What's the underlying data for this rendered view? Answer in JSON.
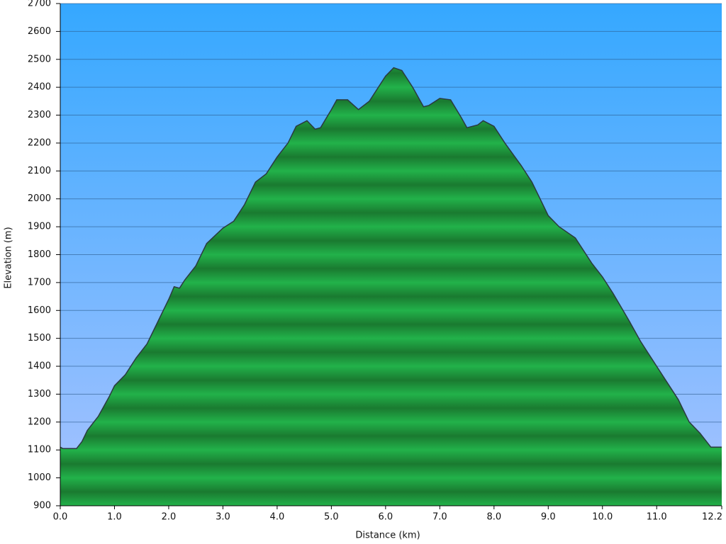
{
  "chart_data": {
    "type": "area",
    "xlabel": "Distance (km)",
    "ylabel": "Elevation (m)",
    "xlim": [
      0,
      12.2
    ],
    "ylim": [
      900,
      2700
    ],
    "xticks": [
      {
        "value": 0,
        "label": "0.0"
      },
      {
        "value": 1,
        "label": "1.0"
      },
      {
        "value": 2,
        "label": "2.0"
      },
      {
        "value": 3,
        "label": "3.0"
      },
      {
        "value": 4,
        "label": "4.0"
      },
      {
        "value": 5,
        "label": "5.0"
      },
      {
        "value": 6,
        "label": "6.0"
      },
      {
        "value": 7,
        "label": "7.0"
      },
      {
        "value": 8,
        "label": "8.0"
      },
      {
        "value": 9,
        "label": "9.0"
      },
      {
        "value": 10,
        "label": "10.0"
      },
      {
        "value": 11,
        "label": "11.0"
      },
      {
        "value": 12.2,
        "label": "12.2"
      }
    ],
    "yticks": [
      900,
      1000,
      1100,
      1200,
      1300,
      1400,
      1500,
      1600,
      1700,
      1800,
      1900,
      2000,
      2100,
      2200,
      2300,
      2400,
      2500,
      2600,
      2700
    ],
    "grid": true,
    "color": "#1f9e3c",
    "x": [
      0,
      0.05,
      0.3,
      0.4,
      0.5,
      0.7,
      0.9,
      1.0,
      1.2,
      1.4,
      1.6,
      1.8,
      2.0,
      2.1,
      2.2,
      2.3,
      2.5,
      2.7,
      3.0,
      3.2,
      3.4,
      3.6,
      3.8,
      4.0,
      4.2,
      4.35,
      4.55,
      4.7,
      4.8,
      5.0,
      5.1,
      5.3,
      5.5,
      5.7,
      6.0,
      6.15,
      6.3,
      6.5,
      6.7,
      6.8,
      7.0,
      7.2,
      7.4,
      7.5,
      7.7,
      7.8,
      8.0,
      8.2,
      8.5,
      8.7,
      9.0,
      9.2,
      9.5,
      9.8,
      10.0,
      10.2,
      10.5,
      10.7,
      11.0,
      11.2,
      11.4,
      11.6,
      11.8,
      12.0,
      12.2
    ],
    "values": [
      1110,
      1105,
      1105,
      1130,
      1170,
      1220,
      1290,
      1330,
      1370,
      1430,
      1480,
      1560,
      1640,
      1685,
      1680,
      1710,
      1760,
      1840,
      1895,
      1920,
      1980,
      2060,
      2090,
      2150,
      2200,
      2260,
      2280,
      2250,
      2255,
      2320,
      2355,
      2355,
      2320,
      2350,
      2440,
      2470,
      2460,
      2400,
      2330,
      2335,
      2360,
      2355,
      2290,
      2255,
      2265,
      2280,
      2260,
      2200,
      2120,
      2060,
      1940,
      1900,
      1860,
      1770,
      1720,
      1660,
      1560,
      1490,
      1400,
      1340,
      1280,
      1200,
      1160,
      1110,
      1110
    ]
  }
}
